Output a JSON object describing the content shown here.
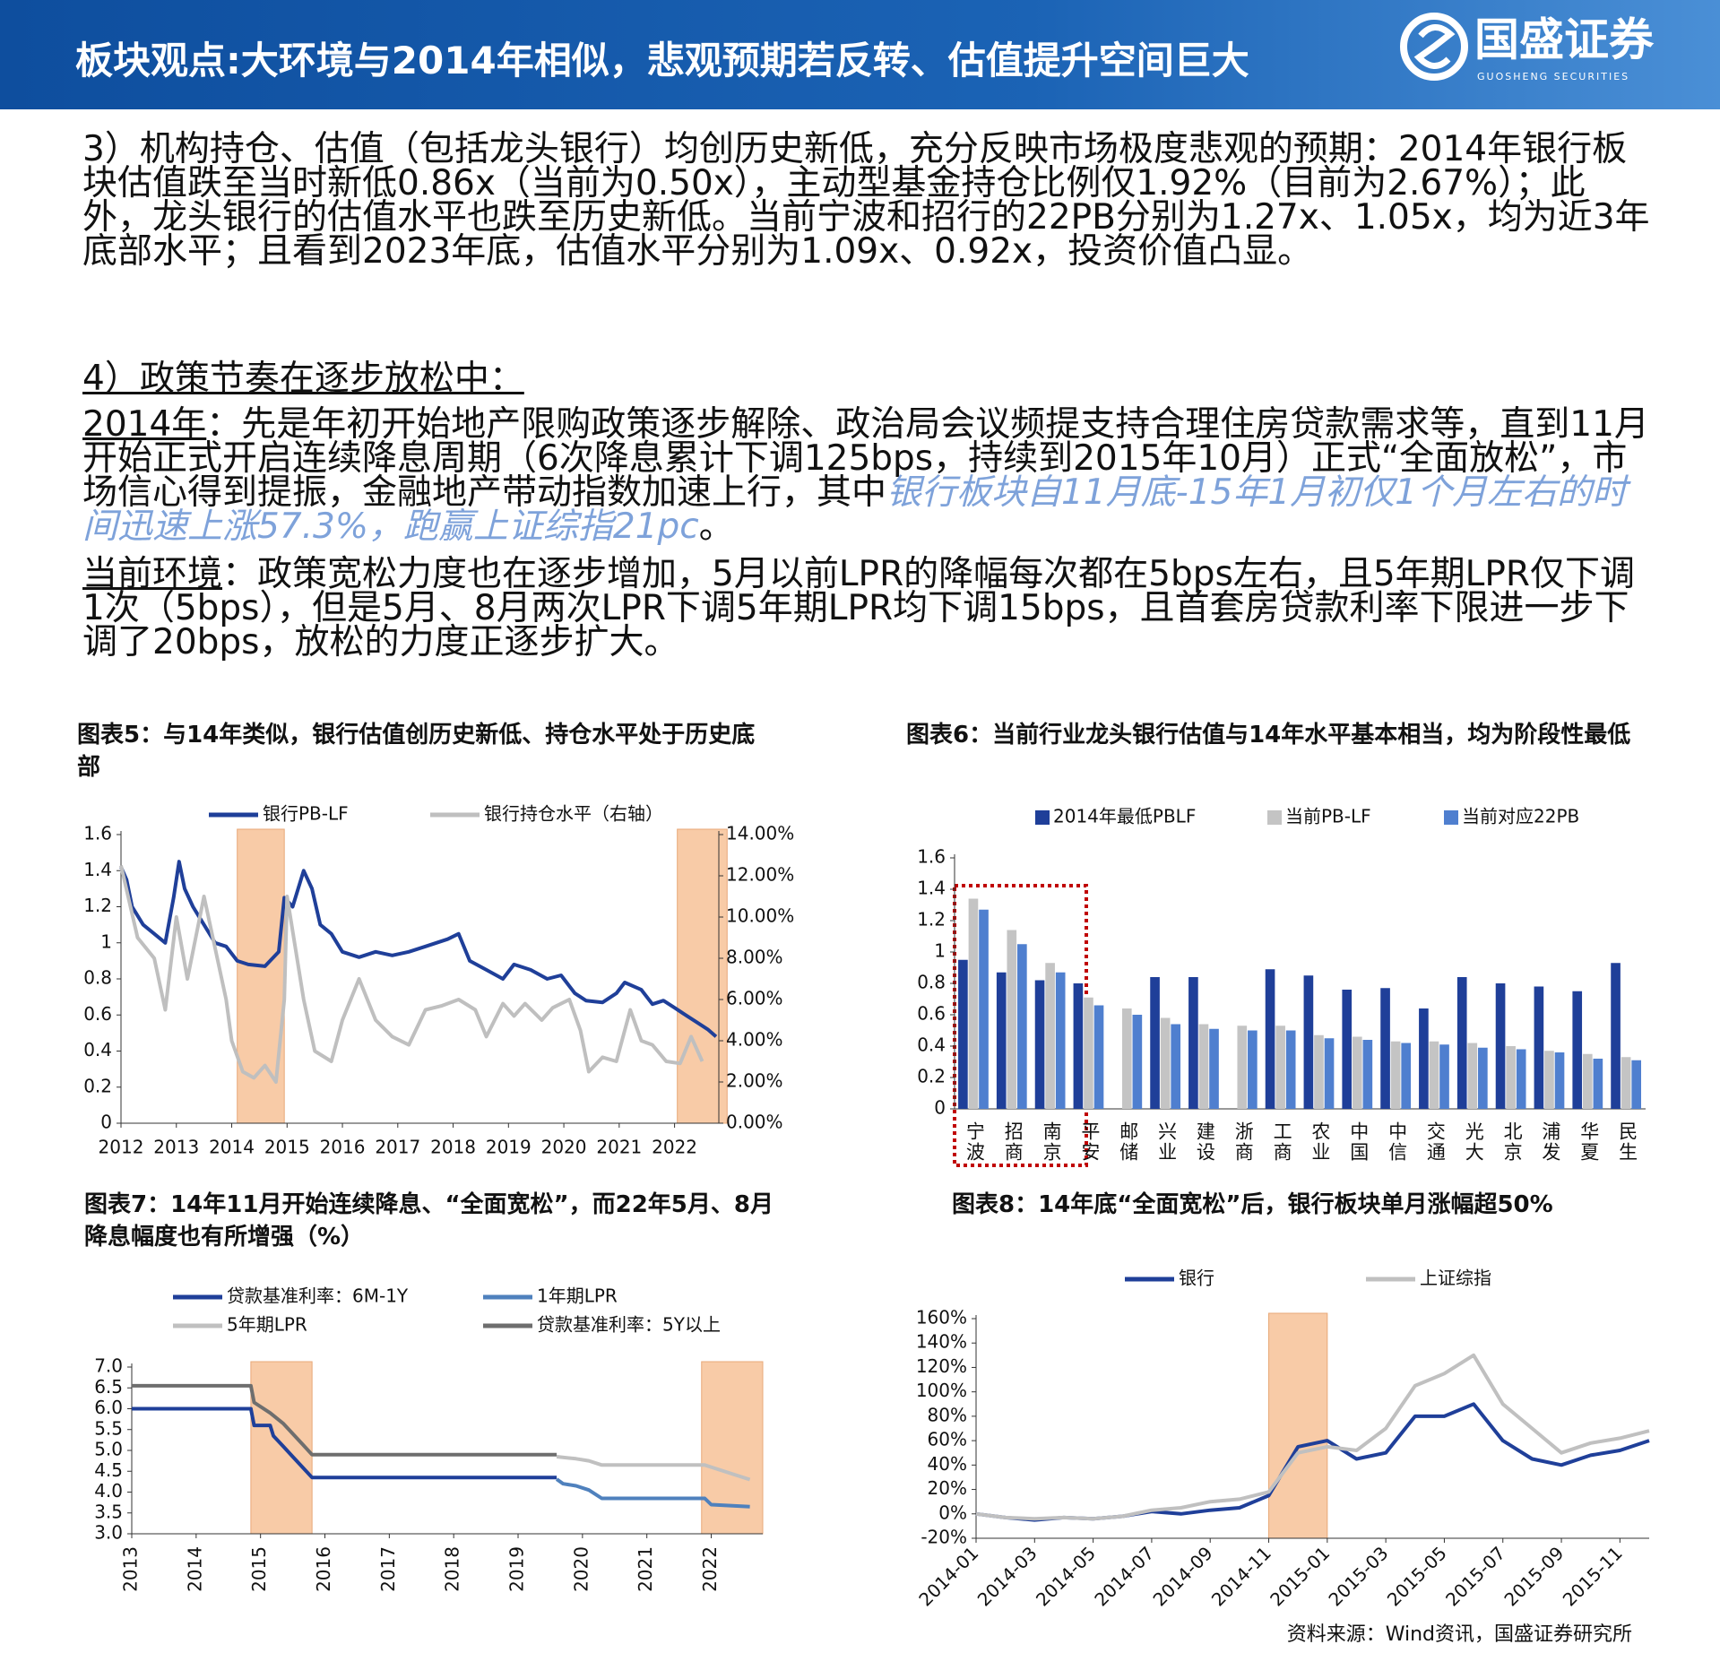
{
  "header": {
    "title": "板块观点:大环境与2014年相似，悲观预期若反转、估值提升空间巨大",
    "logo": "国盛证券",
    "logo_sub": "GUOSHENG SECURITIES"
  },
  "body": {
    "point3": "3）机构持仓、估值（包括龙头银行）均创历史新低，充分反映市场极度悲观的预期：2014年银行板块估值跌至当时新低0.86x（当前为0.50x），主动型基金持仓比例仅1.92%（目前为2.67%）；此外，龙头银行的估值水平也跌至历史新低。当前宁波和招行的22PB分别为1.27x、1.05x，均为近3年底部水平；且看到2023年底，估值水平分别为1.09x、0.92x，投资价值凸显。",
    "heading4": "4）政策节奏在逐步放松中：",
    "para2014": {
      "label": "2014年",
      "text": "：先是年初开始地产限购政策逐步解除、政治局会议频提支持合理住房贷款需求等，直到11月开始正式开启连续降息周期（6次降息累计下调125bps，持续到2015年10月）正式“全面放松”，市场信心得到提振，金融地产带动指数加速上行，其中",
      "highlight": "银行板块自11月底-15年1月初仅1个月左右的时间迅速上涨57.3%，跑赢上证综指21pc",
      "end": "。"
    },
    "paraNow": {
      "label": "当前环境",
      "text": "：政策宽松力度也在逐步增加，5月以前LPR的降幅每次都在5bps左右，且5年期LPR仅下调1次（5bps），但是5月、8月两次LPR下调5年期LPR均下调15bps，且首套房贷款利率下限进一步下调了20bps，放松的力度正逐步扩大。"
    }
  },
  "chart_data": [
    {
      "type": "line",
      "title": "图表5：与14年类似，银行估值创历史新低、持仓水平处于历史底部",
      "xlim": [
        2012,
        2022.8
      ],
      "xticks": [
        2012,
        2013,
        2014,
        2015,
        2016,
        2017,
        2018,
        2019,
        2020,
        2021,
        2022
      ],
      "ylim": [
        0,
        1.6
      ],
      "yticks": [
        0,
        0.2,
        0.4,
        0.6,
        0.8,
        1,
        1.2,
        1.4,
        1.6
      ],
      "y2lim": [
        0,
        14
      ],
      "y2ticks": [
        {
          "value": 0,
          "label": "0.00%"
        },
        {
          "value": 2,
          "label": "2.00%"
        },
        {
          "value": 4,
          "label": "4.00%"
        },
        {
          "value": 6,
          "label": "6.00%"
        },
        {
          "value": 8,
          "label": "8.00%"
        },
        {
          "value": 10,
          "label": "10.00%"
        },
        {
          "value": 12,
          "label": "12.00%"
        },
        {
          "value": 14,
          "label": "14.00%"
        }
      ],
      "highlight_x": [
        [
          2014.1,
          2014.95
        ],
        [
          2022.05,
          2022.95
        ]
      ],
      "highlight_color": "#f8cba7",
      "series": [
        {
          "name": "银行PB-LF",
          "color": "#1f3f99",
          "x": [
            2012.0,
            2012.1,
            2012.2,
            2012.4,
            2012.6,
            2012.8,
            2012.95,
            2013.05,
            2013.15,
            2013.3,
            2013.5,
            2013.7,
            2013.9,
            2014.1,
            2014.3,
            2014.6,
            2014.85,
            2014.95,
            2015.1,
            2015.3,
            2015.45,
            2015.6,
            2015.8,
            2016.0,
            2016.3,
            2016.6,
            2016.9,
            2017.2,
            2017.5,
            2017.9,
            2018.1,
            2018.3,
            2018.6,
            2018.9,
            2019.1,
            2019.4,
            2019.7,
            2019.95,
            2020.2,
            2020.4,
            2020.7,
            2020.95,
            2021.1,
            2021.4,
            2021.6,
            2021.8,
            2022.0,
            2022.2,
            2022.4,
            2022.6,
            2022.75
          ],
          "values": [
            1.42,
            1.35,
            1.2,
            1.1,
            1.05,
            1.0,
            1.25,
            1.45,
            1.3,
            1.2,
            1.1,
            1.0,
            0.98,
            0.9,
            0.88,
            0.87,
            0.95,
            1.25,
            1.2,
            1.4,
            1.3,
            1.1,
            1.05,
            0.95,
            0.92,
            0.95,
            0.93,
            0.95,
            0.98,
            1.02,
            1.05,
            0.9,
            0.85,
            0.8,
            0.88,
            0.85,
            0.8,
            0.82,
            0.72,
            0.68,
            0.67,
            0.72,
            0.78,
            0.74,
            0.66,
            0.68,
            0.64,
            0.6,
            0.56,
            0.52,
            0.48
          ]
        },
        {
          "name": "银行持仓水平（右轴）",
          "color": "#bfbfbf",
          "axis": "y2",
          "x": [
            2012.0,
            2012.3,
            2012.6,
            2012.8,
            2013.0,
            2013.2,
            2013.5,
            2013.9,
            2014.0,
            2014.2,
            2014.4,
            2014.6,
            2014.8,
            2014.95,
            2015.0,
            2015.3,
            2015.5,
            2015.8,
            2016.0,
            2016.3,
            2016.6,
            2016.9,
            2017.2,
            2017.5,
            2017.8,
            2018.1,
            2018.4,
            2018.6,
            2018.9,
            2019.1,
            2019.3,
            2019.6,
            2019.8,
            2020.1,
            2020.3,
            2020.45,
            2020.7,
            2020.95,
            2021.2,
            2021.4,
            2021.6,
            2021.85,
            2022.1,
            2022.3,
            2022.5
          ],
          "values": [
            12.5,
            9,
            8,
            5.5,
            10,
            7,
            11,
            6,
            4,
            2.5,
            2.2,
            2.8,
            2.0,
            6,
            11,
            6,
            3.5,
            3.0,
            5,
            7,
            5,
            4.2,
            3.8,
            5.5,
            5.7,
            6,
            5.5,
            4.2,
            5.8,
            5.2,
            5.8,
            5.0,
            5.6,
            6.0,
            4.5,
            2.5,
            3.2,
            3.0,
            5.5,
            4.0,
            3.8,
            3.0,
            2.9,
            4.2,
            3.0
          ]
        }
      ]
    },
    {
      "type": "bar",
      "title": "图表6：当前行业龙头银行估值与14年水平基本相当，均为阶段性最低",
      "categories": [
        "宁波",
        "招商",
        "南京",
        "平安",
        "邮储",
        "兴业",
        "建设",
        "浙商",
        "工商",
        "农业",
        "中国",
        "中信",
        "交通",
        "光大",
        "北京",
        "浦发",
        "华夏",
        "民生"
      ],
      "ylim": [
        0,
        1.6
      ],
      "yticks": [
        0,
        0.2,
        0.4,
        0.6,
        0.8,
        1,
        1.2,
        1.4,
        1.6
      ],
      "series": [
        {
          "name": "2014年最低PBLF",
          "color": "#1f3f99",
          "values": [
            0.95,
            0.87,
            0.82,
            0.8,
            null,
            0.84,
            0.84,
            null,
            0.89,
            0.85,
            0.76,
            0.77,
            0.64,
            0.84,
            0.8,
            0.78,
            0.75,
            0.93
          ]
        },
        {
          "name": "当前PB-LF",
          "color": "#c4c4c4",
          "values": [
            1.34,
            1.14,
            0.93,
            0.71,
            0.64,
            0.58,
            0.54,
            0.53,
            0.53,
            0.47,
            0.46,
            0.43,
            0.43,
            0.42,
            0.4,
            0.37,
            0.35,
            0.33
          ]
        },
        {
          "name": "当前对应22PB",
          "color": "#4f7fcf",
          "values": [
            1.27,
            1.05,
            0.87,
            0.66,
            0.6,
            0.54,
            0.51,
            0.5,
            0.5,
            0.45,
            0.44,
            0.42,
            0.41,
            0.39,
            0.38,
            0.36,
            0.32,
            0.31
          ]
        }
      ]
    },
    {
      "type": "line",
      "title": "图表7：14年11月开始连续降息、“全面宽松”，而22年5月、8月降息幅度也有所增强（%）",
      "xlim": [
        2013,
        2022.8
      ],
      "xticks": [
        2013,
        2014,
        2015,
        2016,
        2017,
        2018,
        2019,
        2020,
        2021,
        2022
      ],
      "x_tick_rotation": -90,
      "ylim": [
        3,
        7
      ],
      "yticks": [
        {
          "value": 3,
          "label": "3.0"
        },
        {
          "value": 3.5,
          "label": "3.5"
        },
        {
          "value": 4,
          "label": "4.0"
        },
        {
          "value": 4.5,
          "label": "4.5"
        },
        {
          "value": 5,
          "label": "5.0"
        },
        {
          "value": 5.5,
          "label": "5.5"
        },
        {
          "value": 6,
          "label": "6.0"
        },
        {
          "value": 6.5,
          "label": "6.5"
        },
        {
          "value": 7,
          "label": "7.0"
        }
      ],
      "highlight_x": [
        [
          2014.85,
          2015.8
        ],
        [
          2021.85,
          2022.8
        ]
      ],
      "highlight_color": "#f8cba7",
      "series": [
        {
          "name": "贷款基准利率：6M-1Y",
          "color": "#1f3f99",
          "x": [
            2013,
            2014.85,
            2014.9,
            2015.15,
            2015.2,
            2015.35,
            2015.5,
            2015.65,
            2015.8,
            2019.6
          ],
          "values": [
            6.0,
            6.0,
            5.6,
            5.6,
            5.35,
            5.1,
            4.85,
            4.6,
            4.35,
            4.35
          ]
        },
        {
          "name": "1年期LPR",
          "color": "#4f81bd",
          "x": [
            2019.6,
            2019.7,
            2019.9,
            2020.1,
            2020.3,
            2021.9,
            2022.0,
            2022.6
          ],
          "values": [
            4.31,
            4.2,
            4.15,
            4.05,
            3.85,
            3.85,
            3.7,
            3.65
          ]
        },
        {
          "name": "5年期LPR",
          "color": "#c0c0c0",
          "x": [
            2019.6,
            2019.9,
            2020.1,
            2020.3,
            2021.9,
            2022.0,
            2022.3,
            2022.6
          ],
          "values": [
            4.85,
            4.8,
            4.75,
            4.65,
            4.65,
            4.6,
            4.45,
            4.3
          ]
        },
        {
          "name": "贷款基准利率：5Y以上",
          "color": "#6e6e6e",
          "x": [
            2013,
            2014.85,
            2014.9,
            2015.15,
            2015.35,
            2015.5,
            2015.65,
            2015.8,
            2019.6
          ],
          "values": [
            6.55,
            6.55,
            6.15,
            5.9,
            5.65,
            5.4,
            5.15,
            4.9,
            4.9
          ]
        }
      ]
    },
    {
      "type": "line",
      "title": "图表8：14年底“全面宽松”后，银行板块单月涨幅超50%",
      "xlim": [
        "2014-01",
        "2015-12"
      ],
      "xticks": [
        "2014-01",
        "2014-03",
        "2014-05",
        "2014-07",
        "2014-09",
        "2014-11",
        "2015-01",
        "2015-03",
        "2015-05",
        "2015-07",
        "2015-09",
        "2015-11"
      ],
      "x_tick_rotation": -45,
      "ylim": [
        -20,
        160
      ],
      "yticks": [
        {
          "value": -20,
          "label": "-20%"
        },
        {
          "value": 0,
          "label": "0%"
        },
        {
          "value": 20,
          "label": "20%"
        },
        {
          "value": 40,
          "label": "40%"
        },
        {
          "value": 60,
          "label": "60%"
        },
        {
          "value": 80,
          "label": "80%"
        },
        {
          "value": 100,
          "label": "100%"
        },
        {
          "value": 120,
          "label": "120%"
        },
        {
          "value": 140,
          "label": "140%"
        },
        {
          "value": 160,
          "label": "160%"
        }
      ],
      "highlight_x": [
        [
          "2014-11",
          "2015-01"
        ]
      ],
      "highlight_color": "#f8cba7",
      "series": [
        {
          "name": "银行",
          "color": "#1f3f99",
          "x": [
            "2014-01",
            "2014-02",
            "2014-03",
            "2014-04",
            "2014-05",
            "2014-06",
            "2014-07",
            "2014-08",
            "2014-09",
            "2014-10",
            "2014-11",
            "2014-12",
            "2015-01",
            "2015-02",
            "2015-03",
            "2015-04",
            "2015-05",
            "2015-06",
            "2015-07",
            "2015-08",
            "2015-09",
            "2015-10",
            "2015-11",
            "2015-12"
          ],
          "values": [
            0,
            -3,
            -5,
            -3,
            -4,
            -2,
            2,
            0,
            3,
            5,
            15,
            55,
            60,
            45,
            50,
            80,
            80,
            90,
            60,
            45,
            40,
            48,
            52,
            60
          ]
        },
        {
          "name": "上证综指",
          "color": "#c0c0c0",
          "x": [
            "2014-01",
            "2014-02",
            "2014-03",
            "2014-04",
            "2014-05",
            "2014-06",
            "2014-07",
            "2014-08",
            "2014-09",
            "2014-10",
            "2014-11",
            "2014-12",
            "2015-01",
            "2015-02",
            "2015-03",
            "2015-04",
            "2015-05",
            "2015-06",
            "2015-07",
            "2015-08",
            "2015-09",
            "2015-10",
            "2015-11",
            "2015-12"
          ],
          "values": [
            0,
            -3,
            -4,
            -3,
            -4,
            -2,
            3,
            5,
            10,
            12,
            18,
            50,
            55,
            52,
            70,
            105,
            115,
            130,
            90,
            70,
            50,
            58,
            62,
            68
          ]
        }
      ]
    }
  ],
  "source": "资料来源：Wind资讯，国盛证券研究所"
}
